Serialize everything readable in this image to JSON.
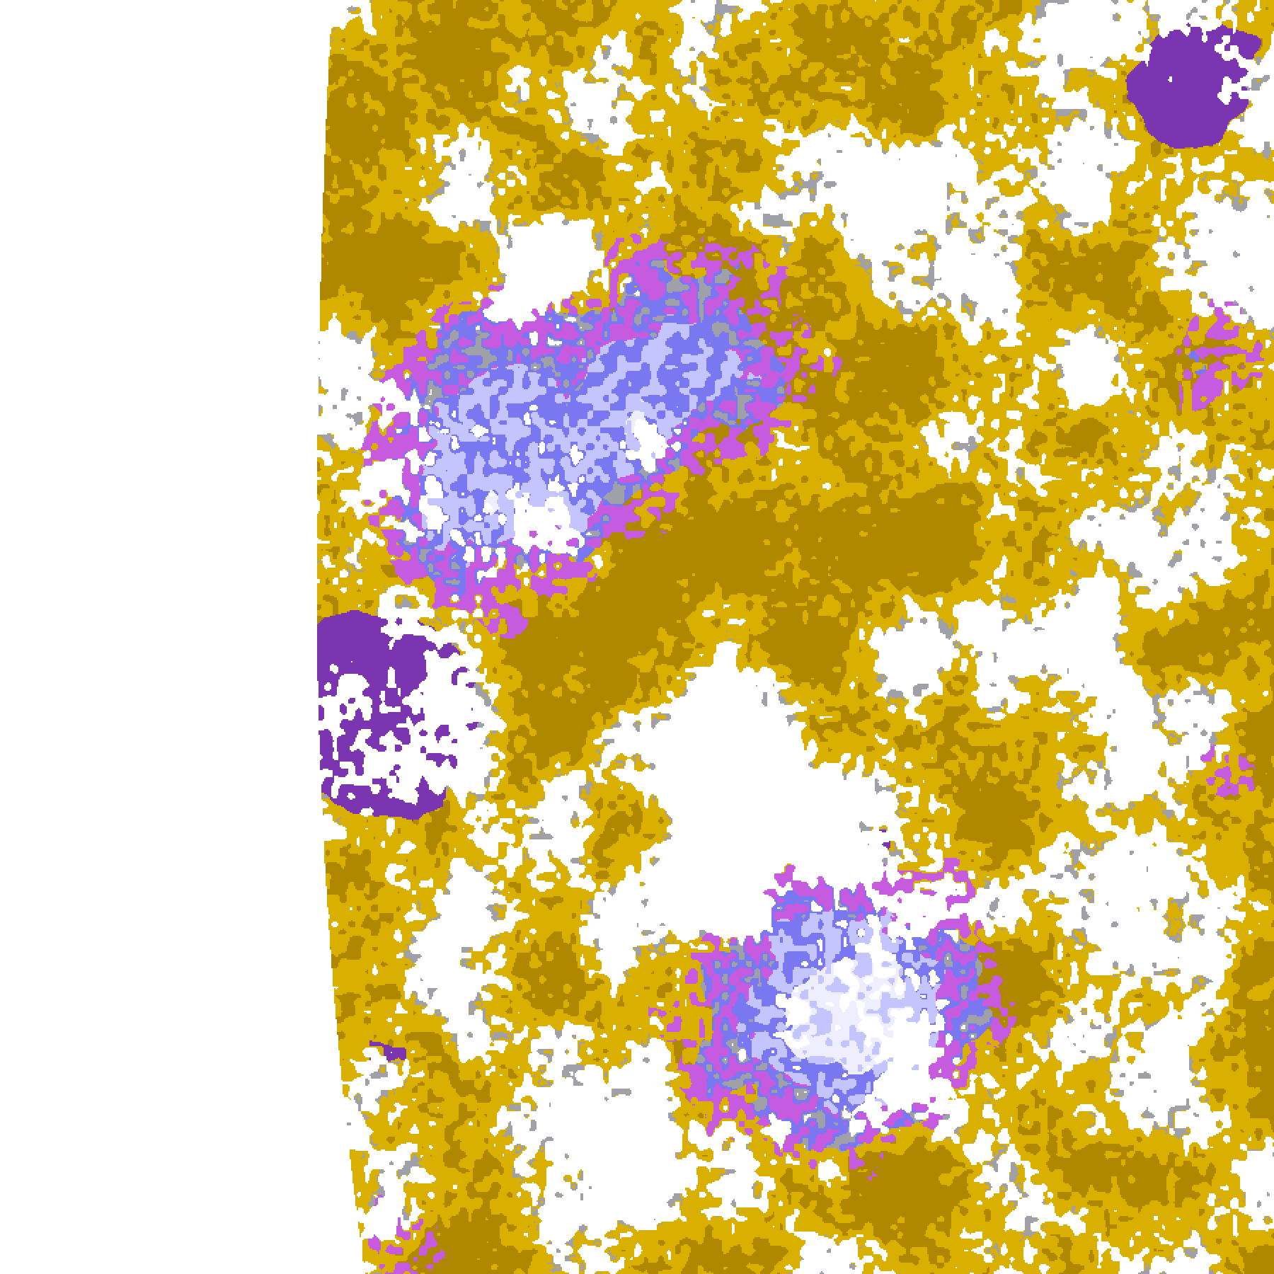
{
  "image": {
    "kind": "false-color satellite cloud imagery",
    "background": "#ffffff",
    "palette": {
      "clear": "#ffffff",
      "gold": "#DAB000",
      "dark_gold": "#B08800",
      "gray": "#A0A0A8",
      "purple": "#7B35B0",
      "magenta": "#C65BE0",
      "blue": "#7A78F0",
      "lavender": "#C4C4FF",
      "pale": "#EEEEFF"
    }
  }
}
